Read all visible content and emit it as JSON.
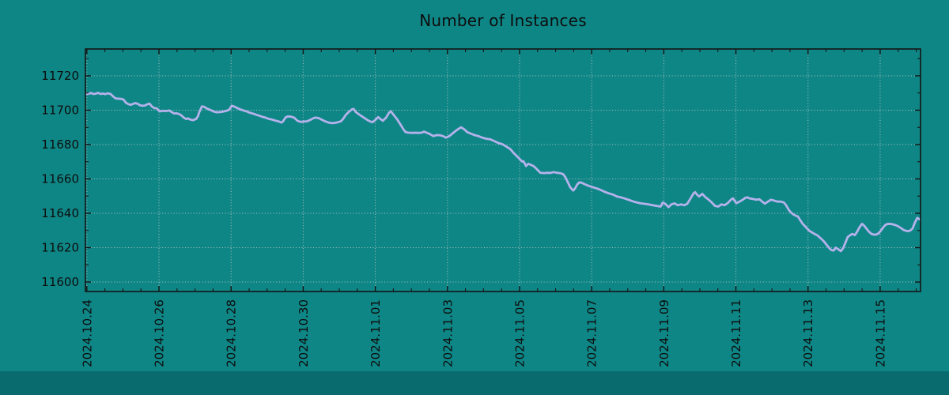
{
  "title": "Number of Instances",
  "colors": {
    "background": "#0f8686",
    "bottom_bar": "#096b6e",
    "line": "#b5b2eb",
    "grid": "#cccccc",
    "axis": "#141414",
    "text": "#0d0d0d"
  },
  "chart_data": {
    "type": "line",
    "title": "Number of Instances",
    "xlabel": "",
    "ylabel": "",
    "grid": true,
    "legend": "none",
    "x_tick_labels": [
      "2024.10.24",
      "2024.10.26",
      "2024.10.28",
      "2024.10.30",
      "2024.11.01",
      "2024.11.03",
      "2024.11.05",
      "2024.11.07",
      "2024.11.09",
      "2024.11.11",
      "2024.11.13",
      "2024.11.15"
    ],
    "x_tick_days": [
      0,
      2,
      4,
      6,
      8,
      10,
      12,
      14,
      16,
      18,
      20,
      22
    ],
    "x_minor_step_days": 0.5,
    "y_tick_labels": [
      "11720",
      "11700",
      "11680",
      "11660",
      "11640",
      "11620",
      "11600"
    ],
    "y_tick_values": [
      11720,
      11700,
      11680,
      11660,
      11640,
      11620,
      11600
    ],
    "y_minor_step": 10,
    "x_range_days": [
      -0.04,
      23.12
    ],
    "y_range": [
      11594.5,
      11735.6
    ],
    "series": [
      {
        "name": "Number of Instances",
        "color": "#b5b2eb",
        "points": [
          [
            0,
            11709.3
          ],
          [
            0.05,
            11709.6
          ],
          [
            0.12,
            11710
          ],
          [
            0.18,
            11709.4
          ],
          [
            0.25,
            11709.6
          ],
          [
            0.31,
            11710.1
          ],
          [
            0.38,
            11709.4
          ],
          [
            0.45,
            11709.7
          ],
          [
            0.51,
            11709.3
          ],
          [
            0.58,
            11709.8
          ],
          [
            0.66,
            11709.4
          ],
          [
            0.73,
            11708
          ],
          [
            0.8,
            11706.8
          ],
          [
            0.88,
            11706.7
          ],
          [
            0.95,
            11706.6
          ],
          [
            1.02,
            11706.1
          ],
          [
            1.08,
            11704.4
          ],
          [
            1.15,
            11703.5
          ],
          [
            1.21,
            11703.1
          ],
          [
            1.28,
            11703.6
          ],
          [
            1.34,
            11704.1
          ],
          [
            1.41,
            11703.7
          ],
          [
            1.48,
            11702.8
          ],
          [
            1.54,
            11702.6
          ],
          [
            1.61,
            11702.7
          ],
          [
            1.67,
            11703.4
          ],
          [
            1.74,
            11703.8
          ],
          [
            1.8,
            11702.2
          ],
          [
            1.87,
            11701.2
          ],
          [
            1.94,
            11701
          ],
          [
            2.02,
            11699.3
          ],
          [
            2.11,
            11699.6
          ],
          [
            2.2,
            11699.5
          ],
          [
            2.29,
            11699.8
          ],
          [
            2.35,
            11698.9
          ],
          [
            2.42,
            11698.1
          ],
          [
            2.48,
            11698.2
          ],
          [
            2.55,
            11697.8
          ],
          [
            2.62,
            11697
          ],
          [
            2.68,
            11695.8
          ],
          [
            2.75,
            11694.9
          ],
          [
            2.81,
            11695.2
          ],
          [
            2.86,
            11694.6
          ],
          [
            2.95,
            11694.2
          ],
          [
            3.03,
            11694.9
          ],
          [
            3.08,
            11696.5
          ],
          [
            3.12,
            11699
          ],
          [
            3.19,
            11702.2
          ],
          [
            3.25,
            11702
          ],
          [
            3.34,
            11700.8
          ],
          [
            3.43,
            11700.1
          ],
          [
            3.52,
            11699.2
          ],
          [
            3.6,
            11698.8
          ],
          [
            3.69,
            11698.9
          ],
          [
            3.78,
            11699.2
          ],
          [
            3.87,
            11699.6
          ],
          [
            3.95,
            11700.3
          ],
          [
            4.02,
            11702.6
          ],
          [
            4.09,
            11702.1
          ],
          [
            4.17,
            11701.2
          ],
          [
            4.26,
            11700.4
          ],
          [
            4.35,
            11699.8
          ],
          [
            4.44,
            11699.2
          ],
          [
            4.52,
            11698.5
          ],
          [
            4.61,
            11698
          ],
          [
            4.7,
            11697.3
          ],
          [
            4.79,
            11696.7
          ],
          [
            4.87,
            11696.1
          ],
          [
            4.96,
            11695.6
          ],
          [
            5.05,
            11694.9
          ],
          [
            5.14,
            11694.5
          ],
          [
            5.23,
            11693.9
          ],
          [
            5.31,
            11693.5
          ],
          [
            5.4,
            11692.8
          ],
          [
            5.44,
            11693.5
          ],
          [
            5.51,
            11695.8
          ],
          [
            5.58,
            11696.4
          ],
          [
            5.66,
            11696.2
          ],
          [
            5.75,
            11695.6
          ],
          [
            5.84,
            11693.8
          ],
          [
            5.93,
            11693.2
          ],
          [
            6.02,
            11693.4
          ],
          [
            6.1,
            11693.5
          ],
          [
            6.19,
            11694.3
          ],
          [
            6.28,
            11695.3
          ],
          [
            6.34,
            11695.7
          ],
          [
            6.43,
            11695.4
          ],
          [
            6.52,
            11694.4
          ],
          [
            6.61,
            11693.5
          ],
          [
            6.7,
            11692.8
          ],
          [
            6.78,
            11692.5
          ],
          [
            6.87,
            11692.6
          ],
          [
            6.96,
            11693
          ],
          [
            7.05,
            11693.6
          ],
          [
            7.11,
            11695
          ],
          [
            7.18,
            11697.2
          ],
          [
            7.27,
            11699.1
          ],
          [
            7.35,
            11700.5
          ],
          [
            7.4,
            11700.7
          ],
          [
            7.46,
            11698.9
          ],
          [
            7.57,
            11697.2
          ],
          [
            7.68,
            11695.7
          ],
          [
            7.77,
            11694.4
          ],
          [
            7.86,
            11693.4
          ],
          [
            7.92,
            11693
          ],
          [
            7.99,
            11694.1
          ],
          [
            8.08,
            11696
          ],
          [
            8.14,
            11694.9
          ],
          [
            8.21,
            11693.8
          ],
          [
            8.3,
            11695.7
          ],
          [
            8.38,
            11698.5
          ],
          [
            8.43,
            11699.4
          ],
          [
            8.51,
            11697.2
          ],
          [
            8.6,
            11694.9
          ],
          [
            8.69,
            11691.9
          ],
          [
            8.78,
            11688.8
          ],
          [
            8.84,
            11687.2
          ],
          [
            8.93,
            11686.9
          ],
          [
            9.02,
            11686.8
          ],
          [
            9.11,
            11686.9
          ],
          [
            9.2,
            11686.8
          ],
          [
            9.28,
            11686.9
          ],
          [
            9.35,
            11687.5
          ],
          [
            9.44,
            11686.8
          ],
          [
            9.52,
            11686
          ],
          [
            9.61,
            11684.9
          ],
          [
            9.7,
            11685.5
          ],
          [
            9.79,
            11685.4
          ],
          [
            9.88,
            11684.9
          ],
          [
            9.96,
            11684
          ],
          [
            10.05,
            11684.9
          ],
          [
            10.14,
            11686.4
          ],
          [
            10.23,
            11688
          ],
          [
            10.31,
            11689.2
          ],
          [
            10.38,
            11690
          ],
          [
            10.47,
            11688.8
          ],
          [
            10.55,
            11687.2
          ],
          [
            10.64,
            11686.4
          ],
          [
            10.75,
            11685.5
          ],
          [
            10.86,
            11684.9
          ],
          [
            10.97,
            11684
          ],
          [
            11.08,
            11683.4
          ],
          [
            11.19,
            11683
          ],
          [
            11.3,
            11682
          ],
          [
            11.41,
            11680.9
          ],
          [
            11.52,
            11680.2
          ],
          [
            11.63,
            11678.9
          ],
          [
            11.74,
            11677.4
          ],
          [
            11.85,
            11674.8
          ],
          [
            11.96,
            11672.5
          ],
          [
            12.02,
            11671.2
          ],
          [
            12.07,
            11670.1
          ],
          [
            12.11,
            11670.3
          ],
          [
            12.18,
            11667.5
          ],
          [
            12.24,
            11668.8
          ],
          [
            12.31,
            11668.2
          ],
          [
            12.38,
            11667.6
          ],
          [
            12.44,
            11666.5
          ],
          [
            12.51,
            11665
          ],
          [
            12.58,
            11663.6
          ],
          [
            12.68,
            11663.4
          ],
          [
            12.77,
            11663.6
          ],
          [
            12.86,
            11663.5
          ],
          [
            12.95,
            11664
          ],
          [
            13.03,
            11663.6
          ],
          [
            13.12,
            11663.4
          ],
          [
            13.21,
            11662.8
          ],
          [
            13.27,
            11661
          ],
          [
            13.34,
            11658
          ],
          [
            13.4,
            11655.3
          ],
          [
            13.47,
            11653.6
          ],
          [
            13.49,
            11653.3
          ],
          [
            13.54,
            11654.5
          ],
          [
            13.6,
            11656.8
          ],
          [
            13.66,
            11658
          ],
          [
            13.72,
            11657.8
          ],
          [
            13.8,
            11657
          ],
          [
            13.89,
            11656.2
          ],
          [
            13.97,
            11655.6
          ],
          [
            14.04,
            11655.1
          ],
          [
            14.15,
            11654.4
          ],
          [
            14.26,
            11653.5
          ],
          [
            14.37,
            11652.4
          ],
          [
            14.48,
            11651.6
          ],
          [
            14.59,
            11650.9
          ],
          [
            14.7,
            11649.8
          ],
          [
            14.81,
            11649.3
          ],
          [
            14.92,
            11648.6
          ],
          [
            15.03,
            11647.8
          ],
          [
            15.14,
            11647
          ],
          [
            15.25,
            11646.3
          ],
          [
            15.36,
            11645.8
          ],
          [
            15.47,
            11645.5
          ],
          [
            15.58,
            11645.2
          ],
          [
            15.69,
            11644.7
          ],
          [
            15.8,
            11644.3
          ],
          [
            15.91,
            11643.9
          ],
          [
            15.97,
            11646.3
          ],
          [
            16.04,
            11645.5
          ],
          [
            16.13,
            11643.6
          ],
          [
            16.21,
            11645.2
          ],
          [
            16.3,
            11645.8
          ],
          [
            16.39,
            11644.7
          ],
          [
            16.48,
            11645.2
          ],
          [
            16.57,
            11644.7
          ],
          [
            16.65,
            11645.5
          ],
          [
            16.74,
            11648.6
          ],
          [
            16.83,
            11651.7
          ],
          [
            16.87,
            11652.3
          ],
          [
            16.92,
            11650.9
          ],
          [
            16.98,
            11649.8
          ],
          [
            17.07,
            11651.3
          ],
          [
            17.16,
            11649.3
          ],
          [
            17.25,
            11647.8
          ],
          [
            17.33,
            11646.3
          ],
          [
            17.42,
            11644.3
          ],
          [
            17.51,
            11643.9
          ],
          [
            17.6,
            11645.2
          ],
          [
            17.68,
            11644.7
          ],
          [
            17.77,
            11645.9
          ],
          [
            17.86,
            11647.9
          ],
          [
            17.92,
            11648.7
          ],
          [
            18.01,
            11645.9
          ],
          [
            18.1,
            11646.8
          ],
          [
            18.19,
            11647.9
          ],
          [
            18.27,
            11649.1
          ],
          [
            18.32,
            11649.3
          ],
          [
            18.38,
            11648.7
          ],
          [
            18.47,
            11648.3
          ],
          [
            18.56,
            11647.9
          ],
          [
            18.65,
            11648.2
          ],
          [
            18.73,
            11646.8
          ],
          [
            18.8,
            11645.6
          ],
          [
            18.89,
            11646.8
          ],
          [
            18.97,
            11647.9
          ],
          [
            19.06,
            11647.4
          ],
          [
            19.15,
            11646.8
          ],
          [
            19.24,
            11646.8
          ],
          [
            19.33,
            11646.3
          ],
          [
            19.39,
            11644.8
          ],
          [
            19.46,
            11642.2
          ],
          [
            19.52,
            11640.6
          ],
          [
            19.59,
            11639.4
          ],
          [
            19.66,
            11638.6
          ],
          [
            19.72,
            11638.1
          ],
          [
            19.79,
            11635.8
          ],
          [
            19.85,
            11633.9
          ],
          [
            19.92,
            11632.4
          ],
          [
            19.99,
            11630.8
          ],
          [
            20.05,
            11629.6
          ],
          [
            20.12,
            11628.8
          ],
          [
            20.18,
            11628
          ],
          [
            20.25,
            11627.3
          ],
          [
            20.31,
            11626.2
          ],
          [
            20.38,
            11624.9
          ],
          [
            20.45,
            11623.4
          ],
          [
            20.51,
            11621.8
          ],
          [
            20.58,
            11620
          ],
          [
            20.64,
            11618.7
          ],
          [
            20.71,
            11618.3
          ],
          [
            20.77,
            11620
          ],
          [
            20.84,
            11619.1
          ],
          [
            20.91,
            11618
          ],
          [
            20.97,
            11619.6
          ],
          [
            21.04,
            11623.1
          ],
          [
            21.1,
            11626.2
          ],
          [
            21.17,
            11627.3
          ],
          [
            21.23,
            11628
          ],
          [
            21.3,
            11627.3
          ],
          [
            21.37,
            11629.6
          ],
          [
            21.43,
            11631.9
          ],
          [
            21.5,
            11633.9
          ],
          [
            21.56,
            11632.7
          ],
          [
            21.63,
            11630.8
          ],
          [
            21.69,
            11629.3
          ],
          [
            21.76,
            11628
          ],
          [
            21.83,
            11627.6
          ],
          [
            21.89,
            11627.6
          ],
          [
            21.96,
            11628.4
          ],
          [
            22.02,
            11629.9
          ],
          [
            22.09,
            11631.9
          ],
          [
            22.15,
            11633.3
          ],
          [
            22.22,
            11633.9
          ],
          [
            22.31,
            11633.8
          ],
          [
            22.4,
            11633.3
          ],
          [
            22.48,
            11632.7
          ],
          [
            22.57,
            11631.5
          ],
          [
            22.66,
            11630.2
          ],
          [
            22.75,
            11629.6
          ],
          [
            22.83,
            11629.9
          ],
          [
            22.9,
            11631.2
          ],
          [
            22.97,
            11635
          ],
          [
            23.03,
            11637.3
          ],
          [
            23.12,
            11636.3
          ]
        ]
      }
    ]
  }
}
